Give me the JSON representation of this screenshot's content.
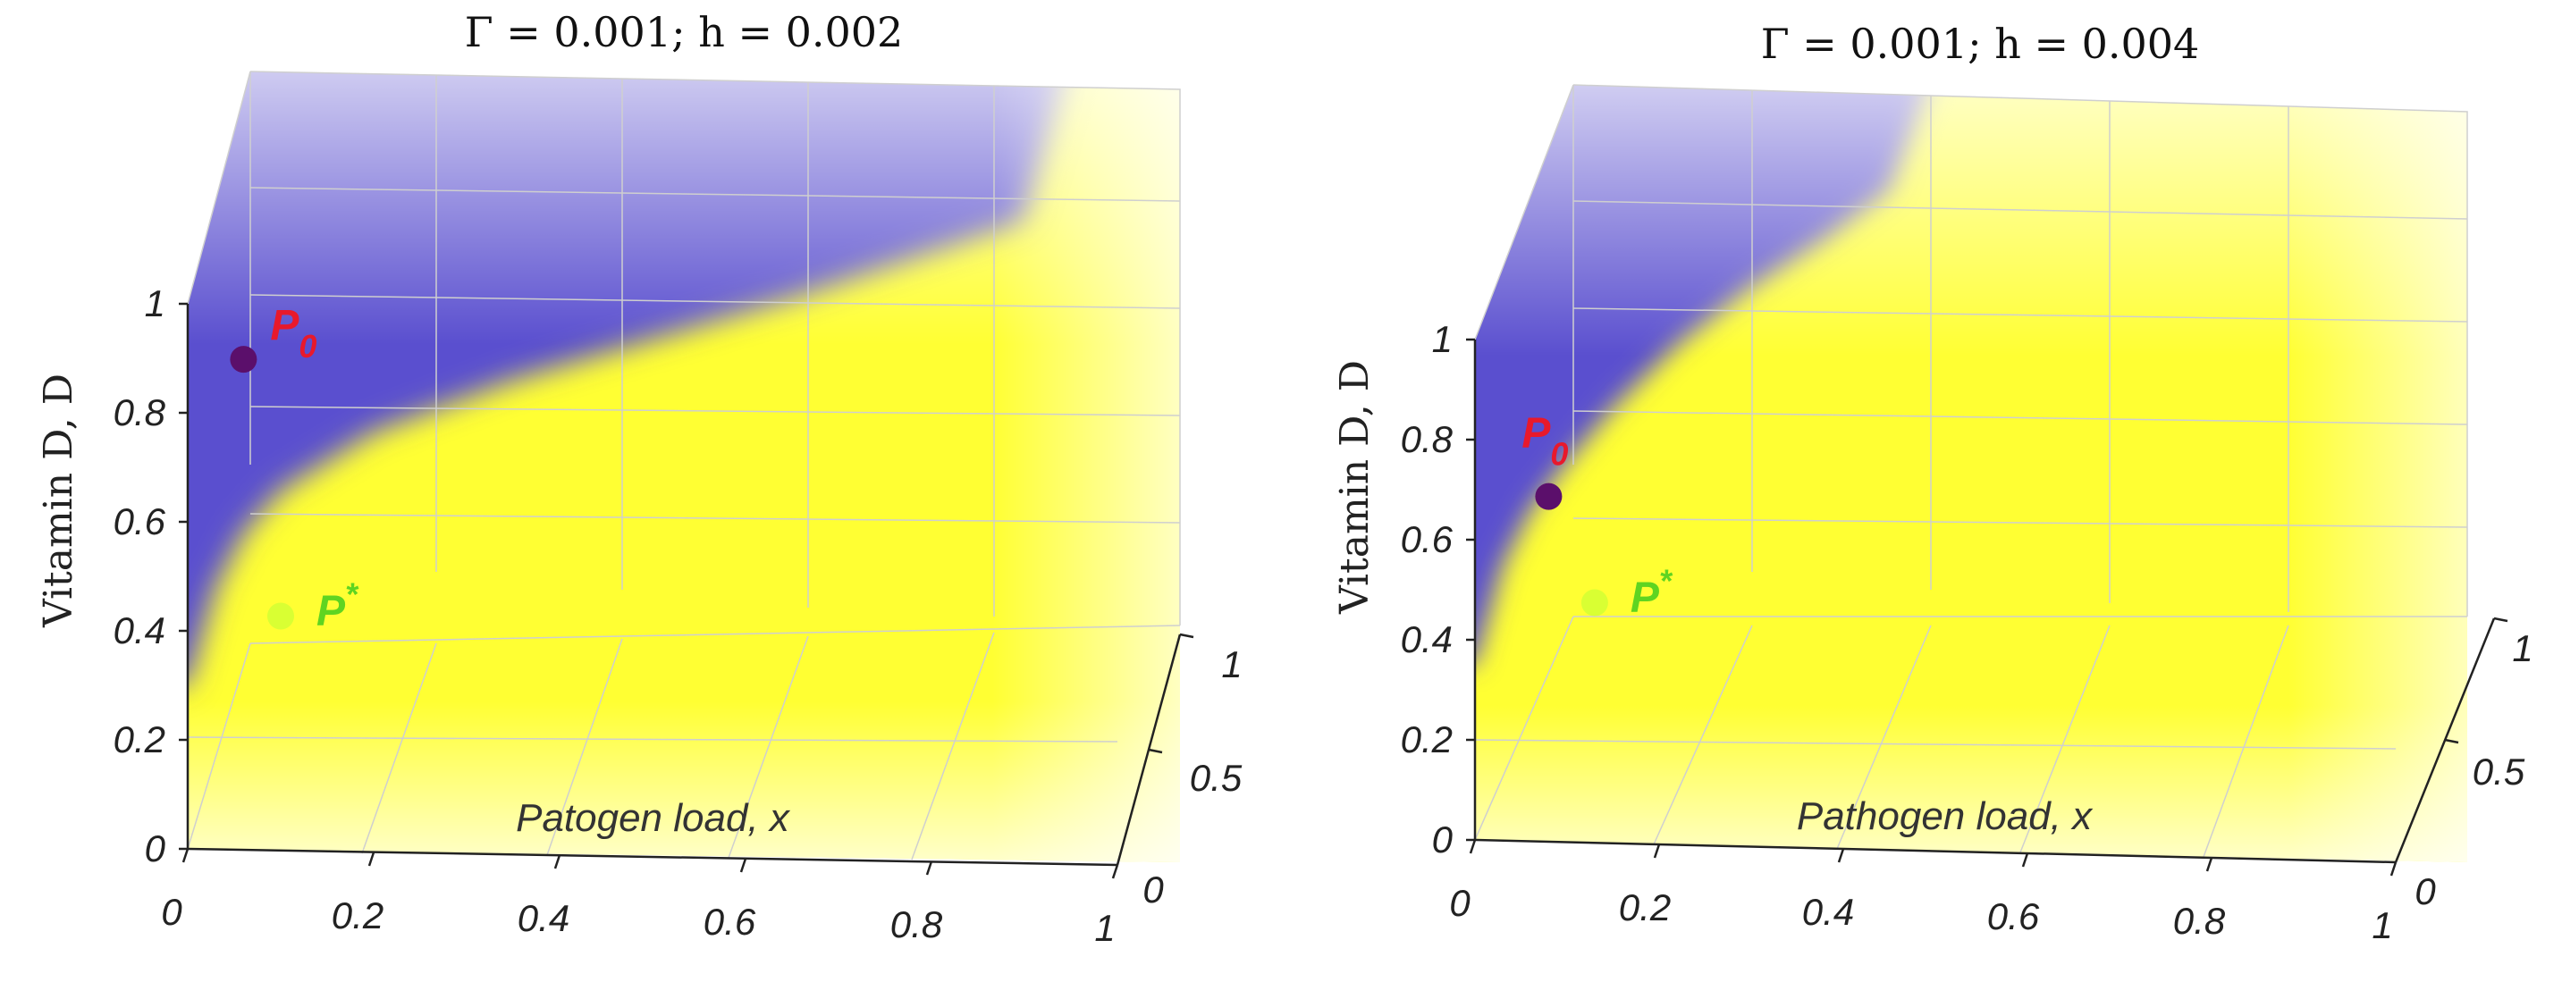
{
  "chart_data": [
    {
      "type": "heatmap",
      "title": "Γ = 0.001; h = 0.002",
      "xlabel": "Patogen load, x",
      "ylabel": "Vitamin D, D",
      "zlabel": "",
      "xlim": [
        0,
        1
      ],
      "ylim": [
        0,
        1
      ],
      "zlim": [
        0,
        1
      ],
      "xticks": [
        "0",
        "0.2",
        "0.4",
        "0.6",
        "0.8",
        "1"
      ],
      "yticks": [
        "0",
        "0.2",
        "0.4",
        "0.6",
        "0.8",
        "1"
      ],
      "zticks": [
        "0",
        "0.5",
        "1"
      ],
      "colors": {
        "low_region": "#5a4fcf",
        "high_region": "#ffff33"
      },
      "boundary": {
        "description": "Separatrix between blue (upper-left) and yellow (lower-right) basins",
        "x": [
          0.0,
          0.03,
          0.06,
          0.1,
          0.2,
          0.35,
          0.5,
          0.65,
          0.8,
          0.9
        ],
        "D": [
          0.3,
          0.48,
          0.58,
          0.66,
          0.77,
          0.87,
          0.95,
          1.03,
          1.12,
          1.18
        ]
      },
      "points": [
        {
          "label": "P",
          "sub": "0",
          "x": 0.06,
          "D": 0.9,
          "color": "#5b0f6b",
          "label_color": "#e8192c"
        },
        {
          "label": "P",
          "sub": "*",
          "x": 0.1,
          "D": 0.43,
          "color": "#d9ff33",
          "label_color": "#5fd421"
        }
      ]
    },
    {
      "type": "heatmap",
      "title": "Γ = 0.001; h = 0.004",
      "xlabel": "Pathogen load, x",
      "ylabel": "Vitamin D, D",
      "zlabel": "",
      "xlim": [
        0,
        1
      ],
      "ylim": [
        0,
        1
      ],
      "zlim": [
        0,
        1
      ],
      "xticks": [
        "0",
        "0.2",
        "0.4",
        "0.6",
        "0.8",
        "1"
      ],
      "yticks": [
        "0",
        "0.2",
        "0.4",
        "0.6",
        "0.8",
        "1"
      ],
      "zticks": [
        "0",
        "0.5",
        "1"
      ],
      "colors": {
        "low_region": "#5a4fcf",
        "high_region": "#ffff33"
      },
      "boundary": {
        "description": "Separatrix between blue (upper-left) and yellow (lower-right) basins",
        "x": [
          0.0,
          0.03,
          0.06,
          0.1,
          0.15,
          0.22,
          0.3,
          0.38,
          0.45
        ],
        "D": [
          0.35,
          0.55,
          0.66,
          0.76,
          0.87,
          1.0,
          1.12,
          1.22,
          1.32
        ]
      },
      "points": [
        {
          "label": "P",
          "sub": "0",
          "x": 0.08,
          "D": 0.69,
          "color": "#5b0f6b",
          "label_color": "#e8192c"
        },
        {
          "label": "P",
          "sub": "*",
          "x": 0.13,
          "D": 0.48,
          "color": "#d9ff33",
          "label_color": "#5fd421"
        }
      ]
    }
  ]
}
